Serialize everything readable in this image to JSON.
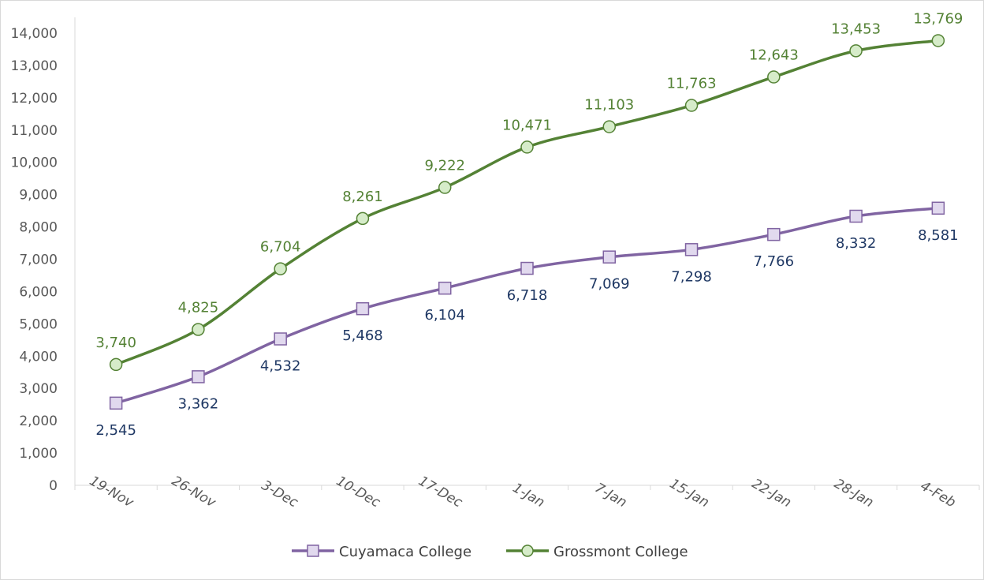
{
  "chart_data": {
    "type": "line",
    "title": "",
    "xlabel": "",
    "ylabel": "",
    "categories": [
      "19-Nov",
      "26-Nov",
      "3-Dec",
      "10-Dec",
      "17-Dec",
      "1-Jan",
      "7-Jan",
      "15-Jan",
      "22-Jan",
      "28-Jan",
      "4-Feb"
    ],
    "ylim": [
      0,
      14000
    ],
    "ytick_step": 1000,
    "grid": false,
    "legend_position": "bottom",
    "data_labels": true,
    "smooth": true,
    "series": [
      {
        "name": "Cuyamaca College",
        "values": [
          2545,
          3362,
          4532,
          5468,
          6104,
          6718,
          7069,
          7298,
          7766,
          8332,
          8581
        ],
        "line_color": "#8064a2",
        "marker": "square",
        "marker_fill": "#e1d9ee",
        "label_color": "#1f3864",
        "label_position": "below"
      },
      {
        "name": "Grossmont College",
        "values": [
          3740,
          4825,
          6704,
          8261,
          9222,
          10471,
          11103,
          11763,
          12643,
          13453,
          13769
        ],
        "line_color": "#548235",
        "marker": "circle",
        "marker_fill": "#d6ecc9",
        "label_color": "#548235",
        "label_position": "above"
      }
    ]
  }
}
